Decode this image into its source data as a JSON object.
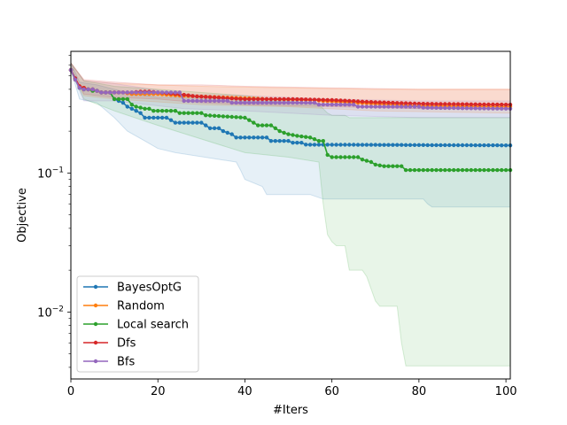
{
  "chart_data": {
    "type": "line",
    "title": "",
    "xlabel": "#Iters",
    "ylabel": "Objective",
    "yscale": "log",
    "xlim": [
      0,
      101
    ],
    "ylim": [
      0.0033,
      0.75
    ],
    "x_ticks": [
      0,
      20,
      40,
      60,
      80,
      100
    ],
    "x_tick_labels": [
      "0",
      "20",
      "40",
      "60",
      "80",
      "100"
    ],
    "y_ticks": [
      0.01,
      0.1
    ],
    "y_tick_labels": [
      "10^-2",
      "10^-1"
    ],
    "legend_position": "lower-left",
    "grid": false,
    "series": [
      {
        "name": "BayesOptG",
        "color": "#1f77b4",
        "mean": [
          [
            0,
            0.55
          ],
          [
            1,
            0.48
          ],
          [
            2,
            0.41
          ],
          [
            3,
            0.4
          ],
          [
            4,
            0.4
          ],
          [
            5,
            0.4
          ],
          [
            6,
            0.39
          ],
          [
            7,
            0.38
          ],
          [
            8,
            0.38
          ],
          [
            9,
            0.38
          ],
          [
            10,
            0.34
          ],
          [
            11,
            0.33
          ],
          [
            12,
            0.32
          ],
          [
            13,
            0.3
          ],
          [
            14,
            0.29
          ],
          [
            15,
            0.28
          ],
          [
            16,
            0.27
          ],
          [
            17,
            0.25
          ],
          [
            18,
            0.25
          ],
          [
            22,
            0.25
          ],
          [
            23,
            0.24
          ],
          [
            24,
            0.23
          ],
          [
            30,
            0.23
          ],
          [
            31,
            0.22
          ],
          [
            32,
            0.21
          ],
          [
            34,
            0.21
          ],
          [
            35,
            0.2
          ],
          [
            37,
            0.19
          ],
          [
            38,
            0.18
          ],
          [
            45,
            0.18
          ],
          [
            46,
            0.17
          ],
          [
            50,
            0.17
          ],
          [
            51,
            0.165
          ],
          [
            52,
            0.165
          ],
          [
            53,
            0.165
          ],
          [
            54,
            0.16
          ],
          [
            101,
            0.158
          ]
        ],
        "band": [
          [
            0,
            0.55,
            0.62
          ],
          [
            2,
            0.34,
            0.45
          ],
          [
            6,
            0.32,
            0.43
          ],
          [
            10,
            0.25,
            0.4
          ],
          [
            13,
            0.2,
            0.38
          ],
          [
            17,
            0.17,
            0.36
          ],
          [
            20,
            0.15,
            0.35
          ],
          [
            24,
            0.14,
            0.35
          ],
          [
            38,
            0.12,
            0.34
          ],
          [
            39,
            0.105,
            0.33
          ],
          [
            40,
            0.09,
            0.33
          ],
          [
            44,
            0.08,
            0.33
          ],
          [
            45,
            0.07,
            0.33
          ],
          [
            55,
            0.07,
            0.32
          ],
          [
            58,
            0.065,
            0.31
          ],
          [
            81,
            0.065,
            0.29
          ],
          [
            82,
            0.06,
            0.29
          ],
          [
            83,
            0.057,
            0.29
          ],
          [
            101,
            0.057,
            0.29
          ]
        ]
      },
      {
        "name": "Random",
        "color": "#ff7f0e",
        "mean": [
          [
            0,
            0.55
          ],
          [
            1,
            0.47
          ],
          [
            2,
            0.42
          ],
          [
            3,
            0.41
          ],
          [
            4,
            0.4
          ],
          [
            5,
            0.4
          ],
          [
            6,
            0.39
          ],
          [
            7,
            0.38
          ],
          [
            12,
            0.38
          ],
          [
            14,
            0.37
          ],
          [
            20,
            0.37
          ],
          [
            25,
            0.36
          ],
          [
            30,
            0.355
          ],
          [
            35,
            0.35
          ],
          [
            40,
            0.345
          ],
          [
            45,
            0.34
          ],
          [
            56,
            0.335
          ],
          [
            58,
            0.33
          ],
          [
            62,
            0.325
          ],
          [
            66,
            0.32
          ],
          [
            70,
            0.315
          ],
          [
            75,
            0.31
          ],
          [
            79,
            0.305
          ],
          [
            101,
            0.3
          ]
        ],
        "band": [
          [
            0,
            0.55,
            0.62
          ],
          [
            3,
            0.36,
            0.46
          ],
          [
            10,
            0.34,
            0.44
          ],
          [
            30,
            0.31,
            0.42
          ],
          [
            50,
            0.3,
            0.41
          ],
          [
            70,
            0.28,
            0.4
          ],
          [
            101,
            0.27,
            0.4
          ]
        ]
      },
      {
        "name": "Local search",
        "color": "#2ca02c",
        "mean": [
          [
            0,
            0.55
          ],
          [
            1,
            0.47
          ],
          [
            2,
            0.41
          ],
          [
            3,
            0.4
          ],
          [
            4,
            0.4
          ],
          [
            5,
            0.39
          ],
          [
            6,
            0.39
          ],
          [
            7,
            0.38
          ],
          [
            8,
            0.38
          ],
          [
            9,
            0.38
          ],
          [
            10,
            0.34
          ],
          [
            13,
            0.34
          ],
          [
            14,
            0.31
          ],
          [
            15,
            0.3
          ],
          [
            17,
            0.29
          ],
          [
            18,
            0.29
          ],
          [
            19,
            0.28
          ],
          [
            20,
            0.28
          ],
          [
            24,
            0.28
          ],
          [
            25,
            0.27
          ],
          [
            30,
            0.27
          ],
          [
            31,
            0.26
          ],
          [
            40,
            0.25
          ],
          [
            41,
            0.24
          ],
          [
            42,
            0.23
          ],
          [
            43,
            0.22
          ],
          [
            46,
            0.22
          ],
          [
            47,
            0.21
          ],
          [
            48,
            0.2
          ],
          [
            49,
            0.195
          ],
          [
            50,
            0.19
          ],
          [
            52,
            0.185
          ],
          [
            55,
            0.18
          ],
          [
            56,
            0.175
          ],
          [
            57,
            0.17
          ],
          [
            58,
            0.17
          ],
          [
            59,
            0.135
          ],
          [
            60,
            0.13
          ],
          [
            66,
            0.13
          ],
          [
            67,
            0.125
          ],
          [
            69,
            0.12
          ],
          [
            70,
            0.115
          ],
          [
            72,
            0.112
          ],
          [
            76,
            0.112
          ],
          [
            77,
            0.105
          ],
          [
            101,
            0.105
          ]
        ],
        "band": [
          [
            0,
            0.55,
            0.62
          ],
          [
            3,
            0.34,
            0.46
          ],
          [
            10,
            0.28,
            0.42
          ],
          [
            20,
            0.22,
            0.4
          ],
          [
            40,
            0.14,
            0.36
          ],
          [
            50,
            0.13,
            0.33
          ],
          [
            57,
            0.12,
            0.31
          ],
          [
            58,
            0.06,
            0.29
          ],
          [
            59,
            0.036,
            0.27
          ],
          [
            60,
            0.032,
            0.26
          ],
          [
            61,
            0.03,
            0.26
          ],
          [
            63,
            0.03,
            0.26
          ],
          [
            64,
            0.02,
            0.25
          ],
          [
            67,
            0.02,
            0.25
          ],
          [
            68,
            0.018,
            0.25
          ],
          [
            70,
            0.012,
            0.25
          ],
          [
            71,
            0.011,
            0.25
          ],
          [
            75,
            0.011,
            0.25
          ],
          [
            76,
            0.006,
            0.25
          ],
          [
            77,
            0.0041,
            0.25
          ],
          [
            101,
            0.0041,
            0.25
          ]
        ]
      },
      {
        "name": "Dfs",
        "color": "#d62728",
        "mean": [
          [
            0,
            0.55
          ],
          [
            1,
            0.48
          ],
          [
            2,
            0.42
          ],
          [
            3,
            0.41
          ],
          [
            4,
            0.4
          ],
          [
            5,
            0.4
          ],
          [
            6,
            0.39
          ],
          [
            7,
            0.38
          ],
          [
            14,
            0.38
          ],
          [
            16,
            0.385
          ],
          [
            18,
            0.385
          ],
          [
            20,
            0.38
          ],
          [
            22,
            0.375
          ],
          [
            26,
            0.365
          ],
          [
            29,
            0.355
          ],
          [
            33,
            0.35
          ],
          [
            36,
            0.345
          ],
          [
            40,
            0.34
          ],
          [
            50,
            0.34
          ],
          [
            60,
            0.335
          ],
          [
            64,
            0.33
          ],
          [
            68,
            0.325
          ],
          [
            74,
            0.32
          ],
          [
            80,
            0.315
          ],
          [
            101,
            0.31
          ]
        ],
        "band": [
          [
            0,
            0.55,
            0.62
          ],
          [
            3,
            0.37,
            0.47
          ],
          [
            10,
            0.35,
            0.45
          ],
          [
            20,
            0.34,
            0.43
          ],
          [
            30,
            0.32,
            0.43
          ],
          [
            40,
            0.31,
            0.42
          ],
          [
            60,
            0.3,
            0.41
          ],
          [
            80,
            0.29,
            0.4
          ],
          [
            101,
            0.29,
            0.4
          ]
        ]
      },
      {
        "name": "Bfs",
        "color": "#9467bd",
        "mean": [
          [
            0,
            0.55
          ],
          [
            1,
            0.47
          ],
          [
            2,
            0.41
          ],
          [
            3,
            0.4
          ],
          [
            4,
            0.4
          ],
          [
            5,
            0.4
          ],
          [
            6,
            0.39
          ],
          [
            7,
            0.38
          ],
          [
            25,
            0.38
          ],
          [
            26,
            0.33
          ],
          [
            36,
            0.33
          ],
          [
            37,
            0.32
          ],
          [
            56,
            0.32
          ],
          [
            57,
            0.31
          ],
          [
            65,
            0.31
          ],
          [
            66,
            0.3
          ],
          [
            80,
            0.3
          ],
          [
            81,
            0.295
          ],
          [
            101,
            0.29
          ]
        ],
        "band": [
          [
            0,
            0.55,
            0.62
          ],
          [
            3,
            0.33,
            0.46
          ],
          [
            10,
            0.33,
            0.44
          ],
          [
            26,
            0.29,
            0.37
          ],
          [
            40,
            0.28,
            0.36
          ],
          [
            60,
            0.26,
            0.34
          ],
          [
            80,
            0.25,
            0.33
          ],
          [
            101,
            0.25,
            0.33
          ]
        ]
      }
    ]
  }
}
